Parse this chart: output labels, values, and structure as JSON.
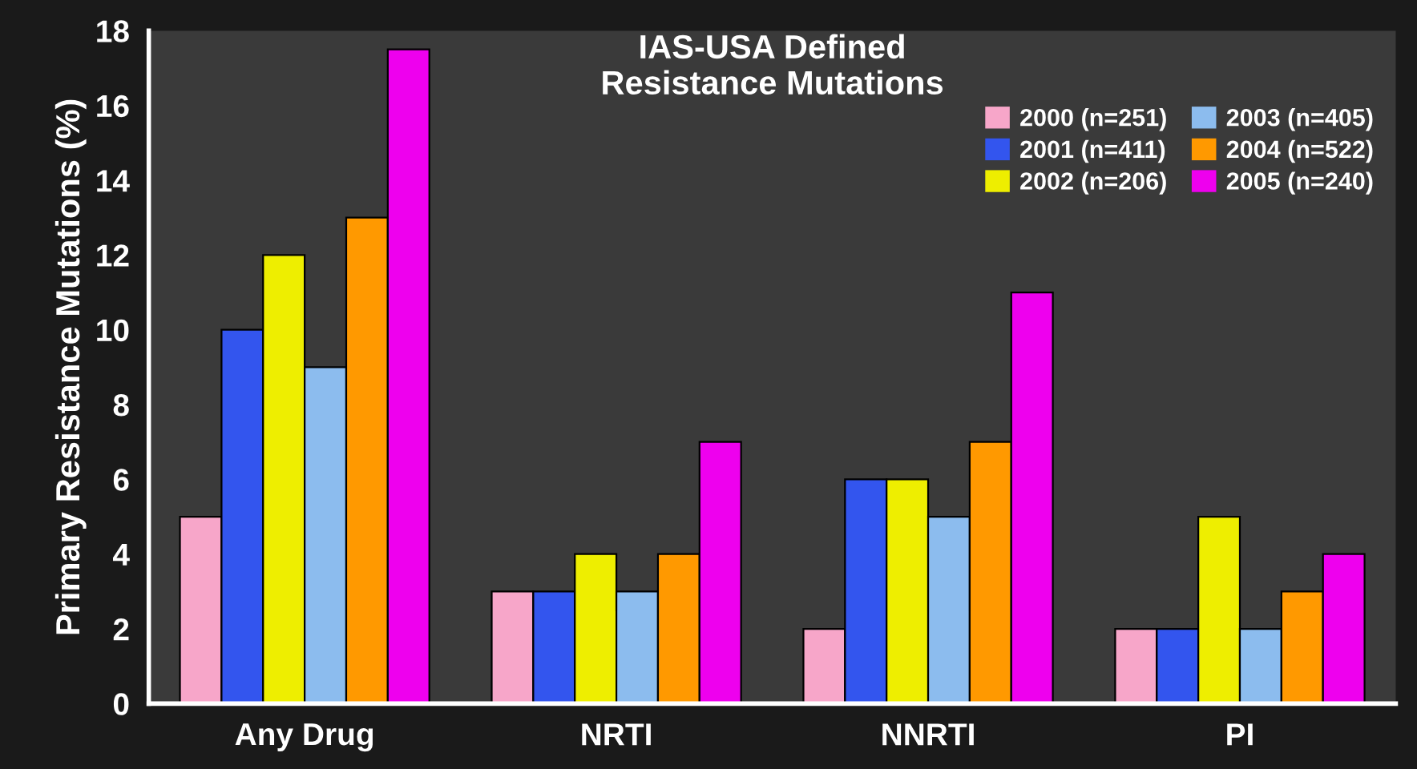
{
  "chart_data": {
    "type": "bar",
    "title": "IAS-USA Defined\nResistance Mutations",
    "ylabel": "Primary Resistance Mutations (%)",
    "categories": [
      "Any Drug",
      "NRTI",
      "NNRTI",
      "PI"
    ],
    "series": [
      {
        "name": "2000 (n=251)",
        "color": "#f7a6c9",
        "values": [
          5,
          3,
          2,
          2
        ]
      },
      {
        "name": "2001 (n=411)",
        "color": "#3355ee",
        "values": [
          10,
          3,
          6,
          2
        ]
      },
      {
        "name": "2002 (n=206)",
        "color": "#eeee00",
        "values": [
          12,
          4,
          6,
          5
        ]
      },
      {
        "name": "2003 (n=405)",
        "color": "#8cbcee",
        "values": [
          9,
          3,
          5,
          2
        ]
      },
      {
        "name": "2004 (n=522)",
        "color": "#ff9900",
        "values": [
          13,
          4,
          7,
          3
        ]
      },
      {
        "name": "2005 (n=240)",
        "color": "#ee00ee",
        "values": [
          17.5,
          7,
          11,
          4
        ]
      }
    ],
    "ylim": [
      0,
      18
    ],
    "yticks": [
      0,
      2,
      4,
      6,
      8,
      10,
      12,
      14,
      16,
      18
    ],
    "grid": false,
    "legend": "top right"
  }
}
